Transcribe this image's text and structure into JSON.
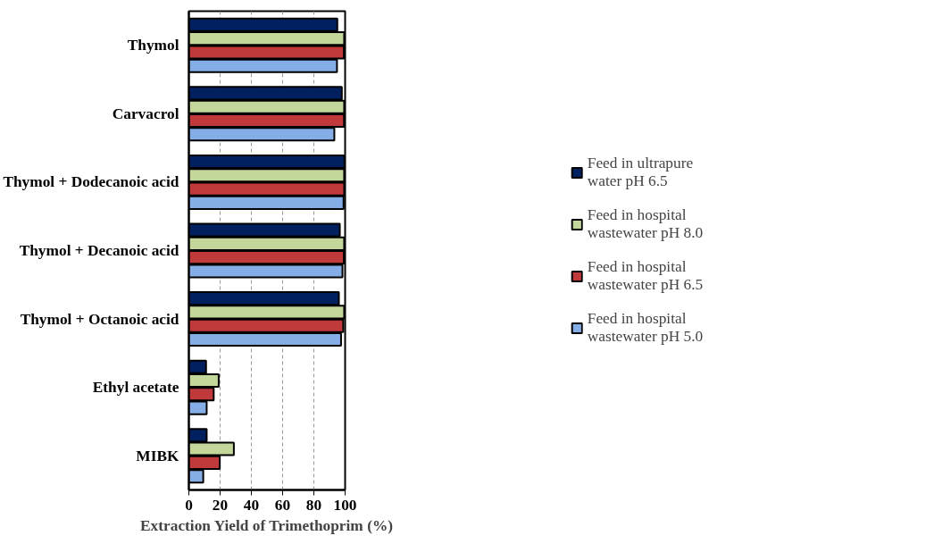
{
  "chart_data": {
    "type": "bar",
    "orientation": "horizontal",
    "xlabel": "Extraction Yield of Trimethoprim (%)",
    "categories": [
      "Thymol",
      "Carvacrol",
      "Thymol + Dodecanoic acid",
      "Thymol + Decanoic acid",
      "Thymol + Octanoic acid",
      "Ethyl acetate",
      "MIBK"
    ],
    "series": [
      {
        "name": "Feed in ultrapure water pH 6.5",
        "color": "#002060",
        "values": [
          95.0,
          97.9,
          99.6,
          96.6,
          96.0,
          11.0,
          11.4
        ]
      },
      {
        "name": "Feed in hospital wastewater pH 8.0",
        "color": "#c4d79b",
        "values": [
          99.4,
          99.4,
          99.4,
          99.4,
          99.4,
          19.1,
          28.8
        ]
      },
      {
        "name": "Feed in hospital wastewater pH 6.5",
        "color": "#c0393b",
        "values": [
          99.2,
          99.3,
          99.4,
          99.2,
          98.8,
          15.9,
          19.8
        ]
      },
      {
        "name": "Feed in hospital wastewater pH 5.0",
        "color": "#85aee6",
        "values": [
          94.8,
          93.1,
          99.0,
          98.3,
          97.4,
          11.4,
          9.2
        ]
      }
    ],
    "xlim": [
      0,
      100
    ],
    "xticks": [
      0,
      20,
      40,
      60,
      80,
      100
    ],
    "grid": "x",
    "legend": "right"
  }
}
